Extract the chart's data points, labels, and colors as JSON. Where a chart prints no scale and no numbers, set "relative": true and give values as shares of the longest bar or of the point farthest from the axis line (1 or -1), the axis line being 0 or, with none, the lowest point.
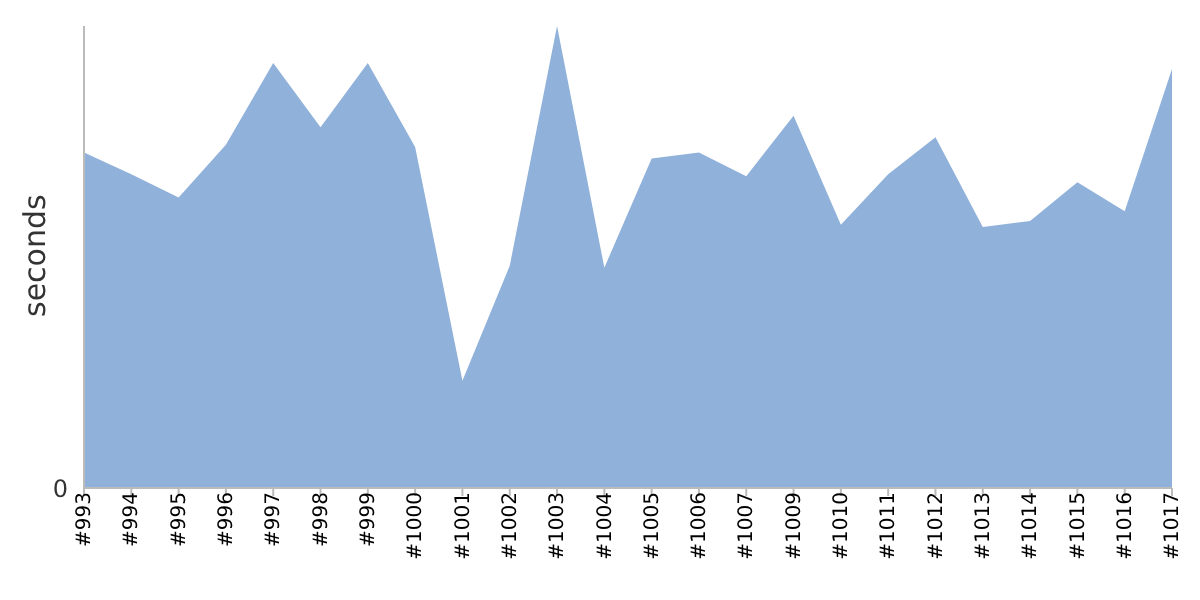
{
  "chart_data": {
    "type": "area",
    "ylabel": "seconds",
    "relative": true,
    "annotations": [
      "0"
    ],
    "categories": [
      "#993",
      "#994",
      "#995",
      "#996",
      "#997",
      "#998",
      "#999",
      "#1000",
      "#1001",
      "#1002",
      "#1003",
      "#1004",
      "#1005",
      "#1006",
      "#1007",
      "#1009",
      "#1010",
      "#1011",
      "#1012",
      "#1013",
      "#1014",
      "#1015",
      "#1016",
      "#1017"
    ],
    "series": [
      {
        "color": "#8fb1da",
        "values": [
          0.726,
          0.679,
          0.629,
          0.743,
          0.92,
          0.781,
          0.92,
          0.738,
          0.232,
          0.481,
          1,
          0.477,
          0.713,
          0.726,
          0.675,
          0.806,
          0.57,
          0.679,
          0.759,
          0.565,
          0.578,
          0.662,
          0.599,
          0.907
        ]
      }
    ],
    "grid": false,
    "legend": false
  }
}
